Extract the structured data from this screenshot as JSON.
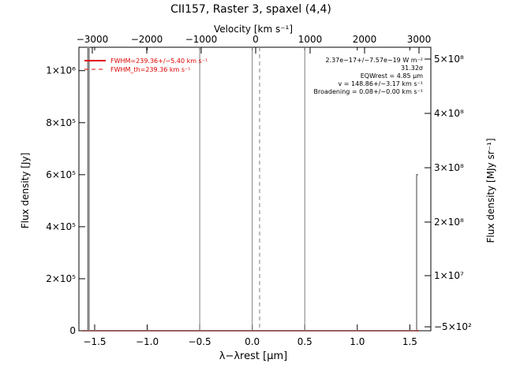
{
  "chart_data": {
    "type": "line",
    "title": "CII157, Raster 3, spaxel (4,4)",
    "top_axis": {
      "label": "Velocity [km s⁻¹]",
      "ticks": [
        -3000,
        -2000,
        -1000,
        0,
        1000,
        2000,
        3000
      ],
      "tick_labels": [
        "−3000",
        "−2000",
        "−1000",
        "0",
        "1000",
        "2000",
        "3000"
      ]
    },
    "bottom_axis": {
      "label": "λ−λrest [μm]",
      "xlim": [
        -1.65,
        1.7
      ],
      "ticks": [
        -1.5,
        -1.0,
        -0.5,
        0.0,
        0.5,
        1.0,
        1.5
      ],
      "tick_labels": [
        "−1.5",
        "−1.0",
        "−0.5",
        "0.0",
        "0.5",
        "1.0",
        "1.5"
      ]
    },
    "left_axis": {
      "label": "Flux density [Jy]",
      "ylim": [
        0,
        1090000
      ],
      "ticks": [
        0,
        200000,
        400000,
        600000,
        800000,
        1000000
      ],
      "tick_labels": [
        "0",
        "2×10⁵",
        "4×10⁵",
        "6×10⁵",
        "8×10⁵",
        "1×10⁶"
      ]
    },
    "right_axis": {
      "label": "Flux density [MJy sr⁻¹]",
      "tick_labels": [
        "−5×10²",
        "1×10⁷",
        "2×10⁸",
        "3×10⁸",
        "4×10⁸",
        "5×10⁸"
      ]
    },
    "series": [
      {
        "name": "FWHM=239.36+/−5.40 km s⁻¹",
        "color": "#e00000",
        "style": "solid",
        "x": [
          -1.62,
          1.58
        ],
        "y": [
          0,
          0
        ]
      },
      {
        "name": "FWHM_th=239.36 km s⁻¹",
        "color": "#e00000",
        "style": "dashed",
        "x": [
          -1.62,
          1.58
        ],
        "y": [
          0,
          0
        ]
      },
      {
        "name": "spectrum",
        "color": "#808080",
        "style": "step",
        "x": [
          -1.62,
          -1.565,
          -1.565,
          -1.553,
          -1.553,
          1.565,
          1.565,
          1.58
        ],
        "y": [
          0,
          0,
          1090000,
          1090000,
          0,
          0,
          600000,
          600000
        ]
      }
    ],
    "vertical_lines": [
      {
        "x": -0.5,
        "color": "#808080",
        "style": "solid"
      },
      {
        "x": 0.0,
        "color": "#808080",
        "style": "solid"
      },
      {
        "x": 0.07,
        "color": "#808080",
        "style": "dashed"
      },
      {
        "x": 0.5,
        "color": "#808080",
        "style": "solid"
      }
    ],
    "annotations": [
      "2.37e−17+/−7.57e−19 W m⁻²",
      "31.32σ",
      "EQWrest = 4.85 μm",
      "v = 148.86+/−3.17 km s⁻¹",
      "Broadening = 0.08+/−0.00 km s⁻¹"
    ],
    "legend_position": "top-left"
  }
}
